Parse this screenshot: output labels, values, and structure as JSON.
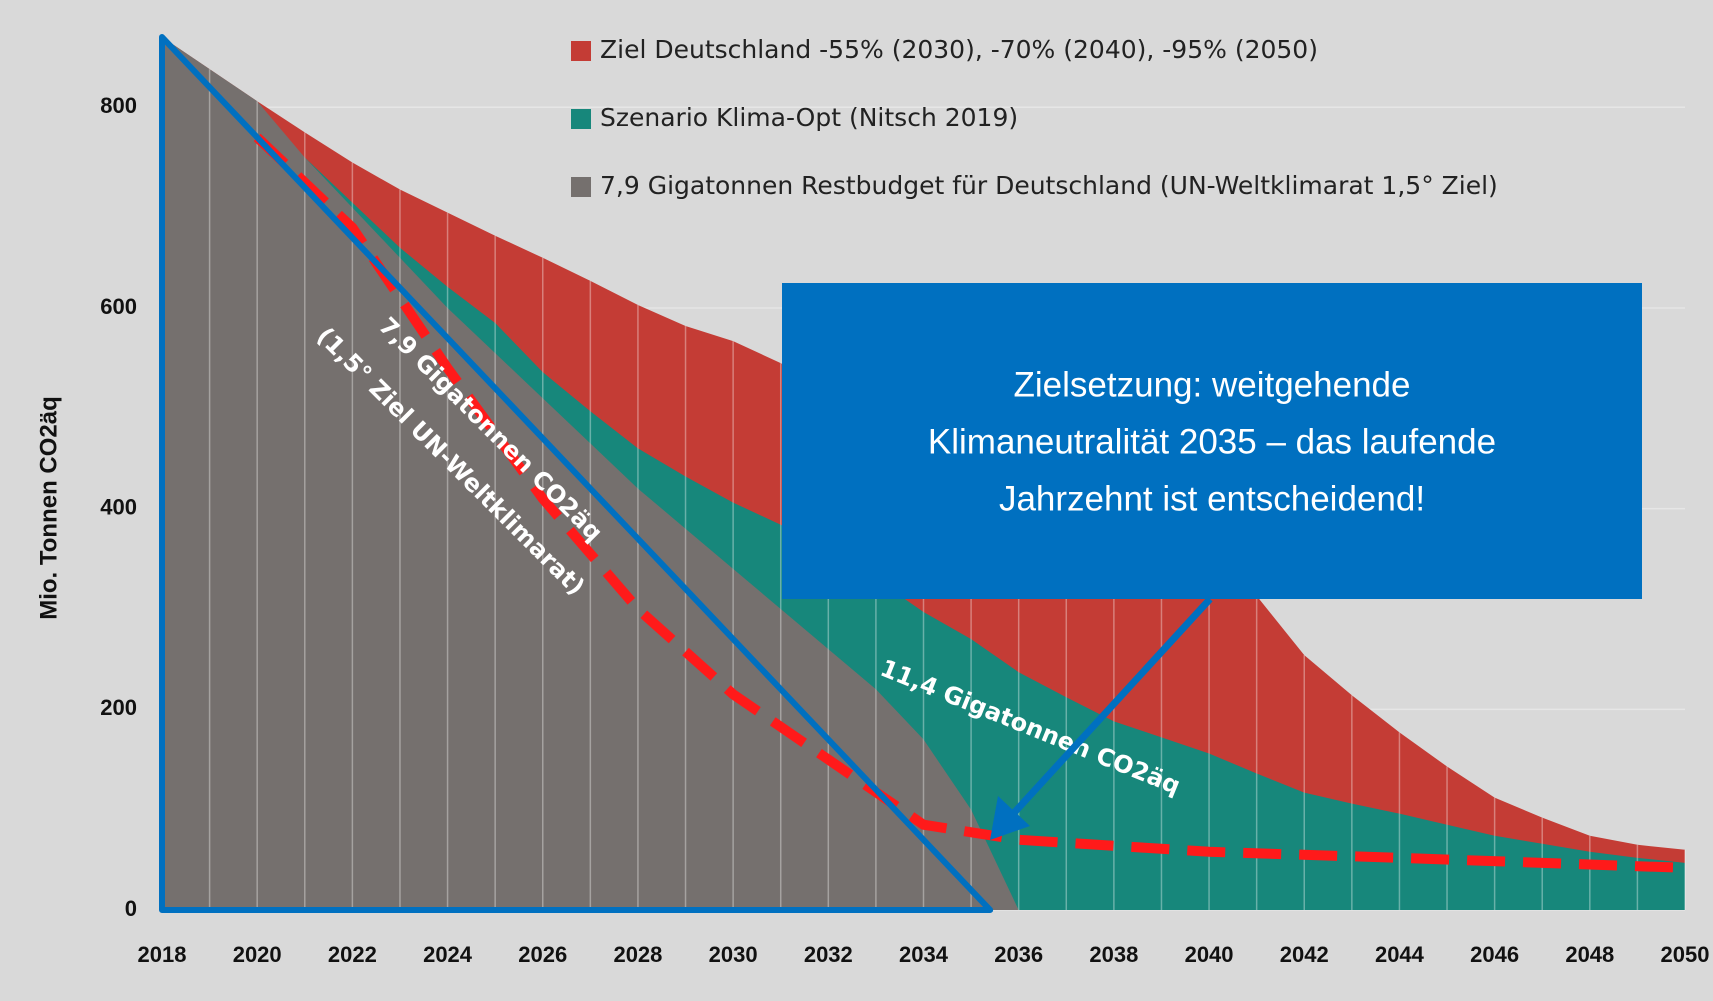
{
  "chart_data": {
    "type": "area",
    "y_label": "Mio. Tonnen CO2äq",
    "x": [
      2018,
      2019,
      2020,
      2021,
      2022,
      2023,
      2024,
      2025,
      2026,
      2027,
      2028,
      2029,
      2030,
      2031,
      2032,
      2033,
      2034,
      2035,
      2036,
      2037,
      2038,
      2039,
      2040,
      2041,
      2042,
      2043,
      2044,
      2045,
      2046,
      2047,
      2048,
      2049,
      2050
    ],
    "series": [
      {
        "name": "Ziel Deutschland -55% (2030), -70% (2040), -95% (2050)",
        "color": "#c43c35",
        "values": [
          870,
          838,
          806,
          775,
          745,
          718,
          695,
          672,
          650,
          627,
          603,
          582,
          567,
          545,
          520,
          497,
          475,
          452,
          430,
          405,
          380,
          355,
          333,
          313,
          254,
          214,
          177,
          143,
          112,
          92,
          74,
          65,
          60
        ]
      },
      {
        "name": "Szenario Klima-Opt (Nitsch 2019)",
        "color": "#17877b",
        "values": [
          870,
          832,
          795,
          750,
          705,
          660,
          621,
          585,
          536,
          497,
          460,
          432,
          406,
          384,
          362,
          330,
          297,
          270,
          237,
          212,
          188,
          172,
          156,
          136,
          117,
          106,
          96,
          85,
          74,
          66,
          58,
          52,
          47
        ]
      },
      {
        "name": "7,9 Gigatonnen Restbudget für Deutschland (UN-Weltklimarat 1,5° Ziel)",
        "color": "#75706e",
        "values": [
          870,
          838,
          806,
          750,
          700,
          650,
          600,
          555,
          510,
          465,
          420,
          380,
          340,
          300,
          260,
          220,
          170,
          100,
          0,
          null,
          null,
          null,
          null,
          null,
          null,
          null,
          null,
          null,
          null,
          null,
          null,
          null,
          null
        ]
      }
    ],
    "dashed_line": {
      "color": "#ff1a1a",
      "x": [
        2020,
        2022,
        2024,
        2026,
        2028,
        2030,
        2032,
        2034,
        2036,
        2040,
        2044,
        2050
      ],
      "values": [
        770,
        680,
        540,
        410,
        300,
        215,
        150,
        85,
        70,
        58,
        52,
        42
      ]
    },
    "budget_triangle": {
      "color": "#0070c0",
      "x": [
        2018,
        2035.4
      ],
      "values": [
        870,
        0
      ]
    },
    "annotations": {
      "budget_1": "7,9 Gigatonnen CO2äq",
      "budget_2": "(1,5° Ziel UN-Weltklimarat)",
      "scenario": "11,4 Gigatonnen CO2äq"
    },
    "callout": {
      "lines": [
        "Zielsetzung: weitgehende",
        "Klimaneutralität 2035 – das laufende",
        "Jahrzehnt ist entscheidend!"
      ],
      "color": "#0070c0"
    },
    "xlim": [
      2018,
      2050
    ],
    "xticks": [
      2018,
      2020,
      2022,
      2024,
      2026,
      2028,
      2030,
      2032,
      2034,
      2036,
      2038,
      2040,
      2042,
      2044,
      2046,
      2048,
      2050
    ],
    "ylim": [
      0,
      880
    ],
    "yticks": [
      0,
      200,
      400,
      600,
      800
    ],
    "grid": true
  }
}
